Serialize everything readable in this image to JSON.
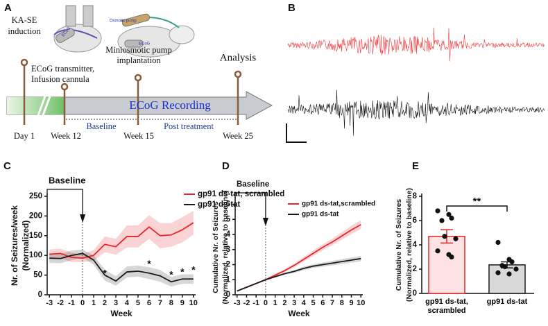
{
  "timeline": {
    "panel": "A",
    "events": [
      {
        "label": [
          "KA-SE",
          "induction"
        ],
        "time": "Day 1"
      },
      {
        "label": [
          "ECoG transmitter,",
          "Infusion cannula"
        ],
        "time": "Week 12"
      },
      {
        "label": [
          "Miniosmotic pump",
          "implantation"
        ],
        "time": "Week 15"
      },
      {
        "label": [
          "Analysis"
        ],
        "time": "Week 25"
      }
    ],
    "bar_label": "ECoG Recording",
    "periods": [
      "Baseline",
      "Post treatment"
    ],
    "icon_labels": [
      "ECoG",
      "Osmotic pump",
      "ECoG"
    ]
  },
  "traces": {
    "panel": "B"
  },
  "chart_data": [
    {
      "type": "line",
      "panel": "C",
      "title": "Baseline",
      "xlabel": "Week",
      "ylabel": [
        "Nr. of Seizures/week",
        "(Normalized)"
      ],
      "x": [
        -3,
        -2,
        -1,
        0,
        1,
        2,
        3,
        4,
        5,
        6,
        7,
        8,
        9,
        10
      ],
      "xlim": [
        -3.2,
        10.2
      ],
      "xticks": [
        -3,
        -2,
        -1,
        0,
        1,
        2,
        3,
        4,
        5,
        6,
        7,
        8,
        9,
        10
      ],
      "ylim": [
        0,
        250
      ],
      "yticks": [
        0,
        50,
        100,
        150,
        200,
        250
      ],
      "vline_x": 0,
      "legend": "upper right",
      "series": [
        {
          "name": "gp91 ds-tat, scrambled",
          "color": "#e8262a",
          "values": [
            103,
            105,
            95,
            93,
            100,
            128,
            122,
            148,
            148,
            172,
            150,
            152,
            165,
            183
          ],
          "error": [
            12,
            12,
            12,
            10,
            14,
            20,
            20,
            28,
            28,
            30,
            32,
            30,
            32,
            30
          ]
        },
        {
          "name": "gp91 ds-tat",
          "color": "#1a1a1a",
          "values": [
            93,
            92,
            100,
            105,
            88,
            50,
            35,
            58,
            60,
            55,
            48,
            33,
            40,
            40
          ],
          "error": [
            12,
            12,
            12,
            10,
            12,
            14,
            12,
            14,
            14,
            15,
            15,
            12,
            12,
            12
          ]
        }
      ],
      "annotations": [
        {
          "x": 2,
          "y": 53,
          "text": "*"
        },
        {
          "x": 6,
          "y": 77,
          "text": "*"
        },
        {
          "x": 8,
          "y": 50,
          "text": "*"
        },
        {
          "x": 9,
          "y": 57,
          "text": "*"
        },
        {
          "x": 10,
          "y": 62,
          "text": "*"
        }
      ]
    },
    {
      "type": "line",
      "panel": "D",
      "title": "Baseline",
      "xlabel": "Week",
      "ylabel": [
        "Cumulative Nr. of Seizures",
        "(Normalized, relative to baseline)"
      ],
      "x": [
        -3,
        -2,
        -1,
        0,
        1,
        2,
        3,
        4,
        5,
        6,
        7,
        8,
        9,
        10
      ],
      "xlim": [
        -3.2,
        10.2
      ],
      "xticks": [
        -3,
        -2,
        -1,
        0,
        1,
        2,
        3,
        4,
        5,
        6,
        7,
        8,
        9,
        10
      ],
      "ylim": [
        0,
        6.3
      ],
      "yticks": [
        0,
        1,
        2,
        3,
        4,
        5,
        6
      ],
      "vline_x": 0,
      "legend": "upper left",
      "series": [
        {
          "name": "gp91 ds-tat,scrambled",
          "color": "#e8262a",
          "values": [
            0.25,
            0.5,
            0.75,
            1.0,
            1.3,
            1.6,
            1.95,
            2.35,
            2.75,
            3.15,
            3.5,
            3.9,
            4.3,
            4.65
          ],
          "error": [
            0.03,
            0.04,
            0.05,
            0.05,
            0.08,
            0.1,
            0.12,
            0.15,
            0.18,
            0.2,
            0.22,
            0.25,
            0.28,
            0.3
          ]
        },
        {
          "name": "gp91 ds-tat",
          "color": "#1a1a1a",
          "values": [
            0.25,
            0.5,
            0.75,
            1.0,
            1.2,
            1.4,
            1.55,
            1.75,
            1.9,
            2.0,
            2.1,
            2.2,
            2.3,
            2.4
          ],
          "error": [
            0.03,
            0.04,
            0.05,
            0.05,
            0.06,
            0.08,
            0.1,
            0.12,
            0.12,
            0.14,
            0.15,
            0.16,
            0.17,
            0.18
          ]
        }
      ],
      "annotations": []
    },
    {
      "type": "bar",
      "panel": "E",
      "ylabel": [
        "Cumulative Nr. of Seizures",
        "(Normalized, relative to baseline)"
      ],
      "categories": [
        "gp91 ds-tat, scrambled",
        "gp91 ds-tat"
      ],
      "values": [
        4.7,
        2.35
      ],
      "errors": [
        0.55,
        0.25
      ],
      "colors": [
        "#fde3e3",
        "#d9d9d9"
      ],
      "edge_colors": [
        "#e8262a",
        "#1a1a1a"
      ],
      "points": [
        [
          6.8,
          6.5,
          6.2,
          6.0,
          4.7,
          4.5,
          3.5,
          3.2,
          3.0
        ],
        [
          4.2,
          2.8,
          2.6,
          2.3,
          2.2,
          2.0,
          1.7,
          1.6
        ]
      ],
      "ylim": [
        0,
        8
      ],
      "yticks": [
        0,
        2,
        4,
        6,
        8
      ],
      "annotations": [
        {
          "text": "**",
          "y": 7.2
        }
      ]
    }
  ]
}
